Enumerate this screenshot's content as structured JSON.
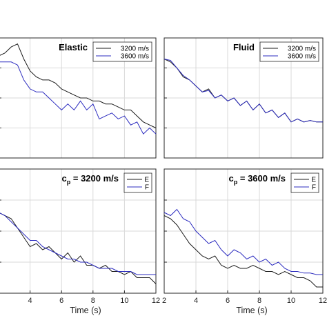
{
  "colors": {
    "black_series": "#1a1a1a",
    "blue_series": "#2b2bbf",
    "grid": "#d9d9d9"
  },
  "chart_data": [
    {
      "type": "line",
      "panel": "top-left",
      "title": "Elastic",
      "title_position": "top-right",
      "xlabel": "",
      "xlim": [
        2,
        12
      ],
      "grid": true,
      "legend_position": "top-right",
      "series": [
        {
          "name": "3200 m/s",
          "color": "#1a1a1a",
          "x": [
            2,
            2.4,
            2.8,
            3.2,
            3.6,
            4,
            4.4,
            4.8,
            5.2,
            5.6,
            6,
            6.4,
            6.8,
            7.2,
            7.6,
            8,
            8.4,
            8.8,
            9.2,
            9.6,
            10,
            10.4,
            10.8,
            11.2,
            11.6,
            12
          ],
          "y": [
            0.88,
            0.9,
            0.94,
            0.96,
            0.86,
            0.78,
            0.74,
            0.72,
            0.72,
            0.7,
            0.66,
            0.64,
            0.62,
            0.6,
            0.6,
            0.58,
            0.58,
            0.56,
            0.56,
            0.54,
            0.52,
            0.52,
            0.48,
            0.44,
            0.42,
            0.4
          ]
        },
        {
          "name": "3600 m/s",
          "color": "#2b2bbf",
          "x": [
            2,
            2.4,
            2.8,
            3.2,
            3.6,
            4,
            4.4,
            4.8,
            5.2,
            5.6,
            6,
            6.4,
            6.8,
            7.2,
            7.6,
            8,
            8.4,
            8.8,
            9.2,
            9.6,
            10,
            10.4,
            10.8,
            11.2,
            11.6,
            12
          ],
          "y": [
            0.84,
            0.84,
            0.84,
            0.82,
            0.72,
            0.66,
            0.64,
            0.64,
            0.6,
            0.56,
            0.52,
            0.56,
            0.52,
            0.58,
            0.52,
            0.56,
            0.46,
            0.48,
            0.5,
            0.46,
            0.48,
            0.42,
            0.44,
            0.36,
            0.4,
            0.36
          ]
        }
      ]
    },
    {
      "type": "line",
      "panel": "top-right",
      "title": "Fluid",
      "title_position": "top-right",
      "xlabel": "",
      "xlim": [
        2,
        12
      ],
      "grid": true,
      "legend_position": "top-right",
      "series": [
        {
          "name": "3200 m/s",
          "color": "#1a1a1a",
          "x": [
            2,
            2.4,
            2.8,
            3.2,
            3.6,
            4,
            4.4,
            4.8,
            5.2,
            5.6,
            6,
            6.4,
            6.8,
            7.2,
            7.6,
            8,
            8.4,
            8.8,
            9.2,
            9.6,
            10,
            10.4,
            10.8,
            11.2,
            11.6,
            12
          ],
          "y": [
            0.86,
            0.84,
            0.8,
            0.74,
            0.72,
            0.68,
            0.64,
            0.66,
            0.6,
            0.62,
            0.58,
            0.6,
            0.55,
            0.58,
            0.52,
            0.56,
            0.5,
            0.52,
            0.47,
            0.5,
            0.44,
            0.46,
            0.44,
            0.45,
            0.44,
            0.44
          ]
        },
        {
          "name": "3600 m/s",
          "color": "#2b2bbf",
          "x": [
            2,
            2.4,
            2.8,
            3.2,
            3.6,
            4,
            4.4,
            4.8,
            5.2,
            5.6,
            6,
            6.4,
            6.8,
            7.2,
            7.6,
            8,
            8.4,
            8.8,
            9.2,
            9.6,
            10,
            10.4,
            10.8,
            11.2,
            11.6,
            12
          ],
          "y": [
            0.86,
            0.85,
            0.8,
            0.75,
            0.72,
            0.68,
            0.64,
            0.65,
            0.6,
            0.62,
            0.58,
            0.6,
            0.55,
            0.58,
            0.52,
            0.56,
            0.5,
            0.52,
            0.47,
            0.5,
            0.44,
            0.46,
            0.44,
            0.45,
            0.44,
            0.44
          ]
        }
      ]
    },
    {
      "type": "line",
      "panel": "bottom-left",
      "title": "c",
      "title_subscript": "p",
      "title_suffix": " = 3200 m/s",
      "title_position": "top-right",
      "xlabel": "Time (s)",
      "xlim": [
        2,
        12
      ],
      "xticks": [
        4,
        6,
        8,
        10,
        12
      ],
      "grid": true,
      "legend_position": "top-right",
      "series": [
        {
          "name": "E",
          "color": "#1a1a1a",
          "x": [
            2,
            2.4,
            2.8,
            3.2,
            3.6,
            4,
            4.4,
            4.8,
            5.2,
            5.6,
            6,
            6.4,
            6.8,
            7.2,
            7.6,
            8,
            8.4,
            8.8,
            9.2,
            9.6,
            10,
            10.4,
            10.8,
            11.2,
            11.6,
            12
          ],
          "y": [
            0.72,
            0.7,
            0.68,
            0.62,
            0.56,
            0.5,
            0.52,
            0.48,
            0.5,
            0.46,
            0.42,
            0.46,
            0.4,
            0.44,
            0.38,
            0.38,
            0.36,
            0.38,
            0.34,
            0.34,
            0.32,
            0.34,
            0.3,
            0.3,
            0.3,
            0.26
          ]
        },
        {
          "name": "F",
          "color": "#2b2bbf",
          "x": [
            2,
            2.4,
            2.8,
            3.2,
            3.6,
            4,
            4.4,
            4.8,
            5.2,
            5.6,
            6,
            6.4,
            6.8,
            7.2,
            7.6,
            8,
            8.4,
            8.8,
            9.2,
            9.6,
            10,
            10.4,
            10.8,
            11.2,
            11.6,
            12
          ],
          "y": [
            0.72,
            0.7,
            0.66,
            0.62,
            0.58,
            0.54,
            0.54,
            0.5,
            0.48,
            0.46,
            0.44,
            0.42,
            0.42,
            0.4,
            0.4,
            0.38,
            0.36,
            0.36,
            0.36,
            0.34,
            0.34,
            0.34,
            0.32,
            0.32,
            0.32,
            0.32
          ]
        }
      ]
    },
    {
      "type": "line",
      "panel": "bottom-right",
      "title": "c",
      "title_subscript": "p",
      "title_suffix": " = 3600 m/s",
      "title_position": "top-right",
      "xlabel": "Time (s)",
      "xlim": [
        2,
        12
      ],
      "xticks": [
        2,
        4,
        6,
        8,
        10,
        12
      ],
      "grid": true,
      "legend_position": "top-right",
      "series": [
        {
          "name": "E",
          "color": "#1a1a1a",
          "x": [
            2,
            2.4,
            2.8,
            3.2,
            3.6,
            4,
            4.4,
            4.8,
            5.2,
            5.6,
            6,
            6.4,
            6.8,
            7.2,
            7.6,
            8,
            8.4,
            8.8,
            9.2,
            9.6,
            10,
            10.4,
            10.8,
            11.2,
            11.6,
            12
          ],
          "y": [
            0.7,
            0.68,
            0.64,
            0.58,
            0.52,
            0.48,
            0.44,
            0.42,
            0.44,
            0.38,
            0.36,
            0.38,
            0.36,
            0.36,
            0.38,
            0.36,
            0.34,
            0.34,
            0.32,
            0.34,
            0.32,
            0.3,
            0.3,
            0.28,
            0.24,
            0.24
          ]
        },
        {
          "name": "F",
          "color": "#2b2bbf",
          "x": [
            2,
            2.4,
            2.8,
            3.2,
            3.6,
            4,
            4.4,
            4.8,
            5.2,
            5.6,
            6,
            6.4,
            6.8,
            7.2,
            7.6,
            8,
            8.4,
            8.8,
            9.2,
            9.6,
            10,
            10.4,
            10.8,
            11.2,
            11.6,
            12
          ],
          "y": [
            0.72,
            0.7,
            0.74,
            0.68,
            0.66,
            0.6,
            0.56,
            0.52,
            0.54,
            0.48,
            0.44,
            0.48,
            0.46,
            0.42,
            0.44,
            0.4,
            0.42,
            0.38,
            0.4,
            0.36,
            0.34,
            0.34,
            0.33,
            0.33,
            0.32,
            0.32
          ]
        }
      ]
    }
  ]
}
